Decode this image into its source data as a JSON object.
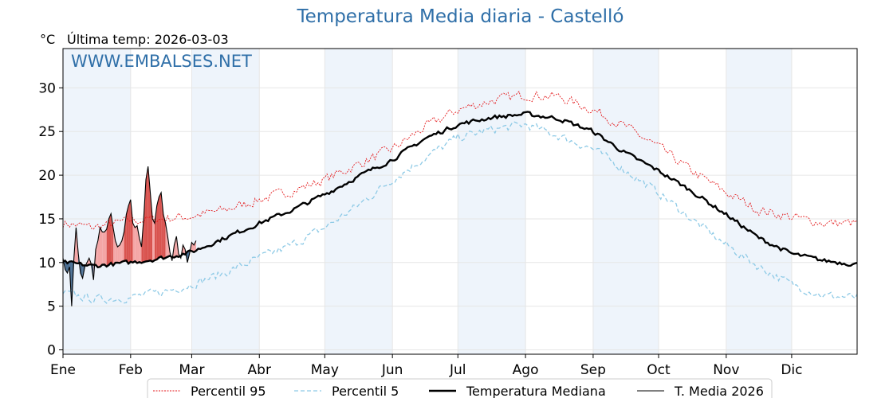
{
  "header": {
    "title": "Temperatura Media diaria - Castelló",
    "unit": "°C",
    "last_temp": "Última temp: 2026-03-03"
  },
  "watermark": "WWW.EMBALSES.NET",
  "colors": {
    "p95": "#e41a1c",
    "p5": "#8ecae6",
    "median": "#000000",
    "current": "#000000",
    "above_fill": "#f4a6a6",
    "above_fill_strong": "#d9534f",
    "below_fill": "#4b6f93",
    "band": "#eef4fb",
    "title": "#2f6fa8"
  },
  "chart_data": {
    "type": "line",
    "title": "Temperatura Media diaria - Castelló",
    "ylabel": "°C",
    "xlim": [
      1,
      365
    ],
    "ylim": [
      -0.5,
      34.5
    ],
    "yticks": [
      0,
      5,
      10,
      15,
      20,
      25,
      30
    ],
    "months": [
      "Ene",
      "Feb",
      "Mar",
      "Abr",
      "May",
      "Jun",
      "Jul",
      "Ago",
      "Sep",
      "Oct",
      "Nov",
      "Dic"
    ],
    "month_start_days": [
      1,
      32,
      60,
      91,
      121,
      152,
      182,
      213,
      244,
      274,
      305,
      335
    ],
    "grid": true,
    "legend_position": "bottom",
    "series": [
      {
        "name": "Percentil 95",
        "style": "dotted",
        "x": [
          1,
          15,
          32,
          46,
          60,
          75,
          91,
          106,
          121,
          136,
          152,
          167,
          182,
          197,
          213,
          228,
          244,
          259,
          274,
          289,
          305,
          320,
          335,
          350,
          365
        ],
        "values": [
          14.5,
          14.0,
          14.8,
          15.0,
          15.3,
          16.0,
          17.2,
          18.2,
          19.5,
          21.2,
          23.0,
          25.5,
          27.5,
          28.5,
          29.2,
          29.0,
          27.5,
          25.5,
          23.2,
          20.5,
          18.0,
          16.0,
          15.2,
          14.5,
          14.5
        ]
      },
      {
        "name": "Percentil 5",
        "style": "dashed",
        "x": [
          1,
          15,
          32,
          46,
          60,
          75,
          91,
          106,
          121,
          136,
          152,
          167,
          182,
          197,
          213,
          228,
          244,
          259,
          274,
          289,
          305,
          320,
          335,
          350,
          365
        ],
        "values": [
          6.5,
          5.8,
          6.0,
          6.6,
          7.5,
          8.8,
          10.5,
          12.0,
          14.0,
          16.5,
          19.5,
          22.0,
          24.3,
          25.2,
          25.8,
          24.5,
          23.0,
          20.5,
          18.0,
          15.0,
          12.0,
          9.5,
          7.5,
          6.2,
          6.0
        ]
      },
      {
        "name": "Temperatura Mediana",
        "style": "solid-bold",
        "x": [
          1,
          15,
          32,
          46,
          60,
          75,
          91,
          106,
          121,
          136,
          152,
          167,
          182,
          197,
          213,
          228,
          244,
          259,
          274,
          289,
          305,
          320,
          335,
          350,
          365
        ],
        "values": [
          10.0,
          9.6,
          10.0,
          10.5,
          11.2,
          12.8,
          14.5,
          16.0,
          17.8,
          19.8,
          21.8,
          24.2,
          25.8,
          26.6,
          27.0,
          26.5,
          25.0,
          22.5,
          20.5,
          18.2,
          15.5,
          12.8,
          11.0,
          10.2,
          9.8
        ]
      },
      {
        "name": "T. Media 2026",
        "style": "solid-thin",
        "x": [
          1,
          2,
          3,
          4,
          5,
          6,
          7,
          8,
          9,
          10,
          11,
          12,
          13,
          14,
          15,
          16,
          17,
          18,
          19,
          20,
          21,
          22,
          23,
          24,
          25,
          26,
          27,
          28,
          29,
          30,
          31,
          32,
          33,
          34,
          35,
          36,
          37,
          38,
          39,
          40,
          41,
          42,
          43,
          44,
          45,
          46,
          47,
          48,
          49,
          50,
          51,
          52,
          53,
          54,
          55,
          56,
          57,
          58,
          59,
          60,
          61,
          62
        ],
        "values": [
          10.5,
          9.2,
          8.8,
          9.5,
          5.0,
          10.5,
          14.0,
          11.0,
          8.8,
          8.2,
          9.5,
          10.0,
          10.5,
          9.8,
          8.0,
          11.5,
          12.5,
          14.0,
          13.5,
          13.5,
          13.8,
          15.0,
          15.6,
          14.0,
          12.5,
          11.8,
          12.0,
          12.5,
          13.5,
          15.5,
          16.5,
          17.2,
          14.5,
          14.0,
          14.2,
          12.8,
          11.8,
          15.0,
          19.5,
          21.0,
          18.0,
          15.0,
          14.5,
          16.5,
          17.5,
          18.0,
          15.5,
          14.5,
          13.0,
          11.2,
          10.2,
          12.0,
          13.0,
          11.0,
          10.5,
          12.0,
          11.5,
          10.0,
          11.0,
          12.3,
          12.0,
          12.5
        ]
      }
    ]
  },
  "legend": [
    {
      "label": "Percentil 95",
      "style": "dotted"
    },
    {
      "label": "Percentil 5",
      "style": "dashed"
    },
    {
      "label": "Temperatura Mediana",
      "style": "solid-bold"
    },
    {
      "label": "T. Media 2026",
      "style": "solid-thin"
    }
  ]
}
